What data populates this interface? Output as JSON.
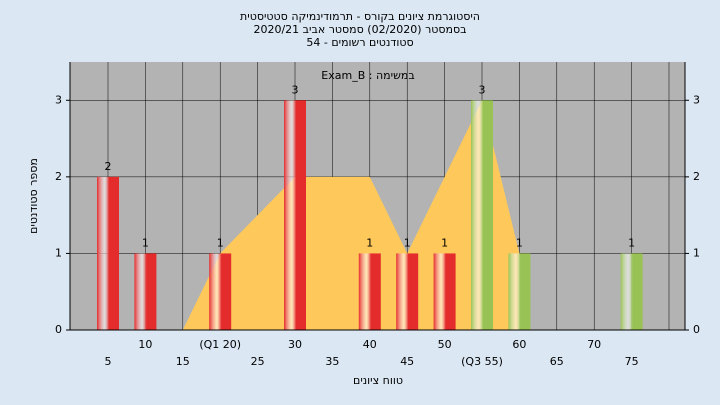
{
  "chart_data": {
    "type": "bar",
    "title_lines": [
      "היסטוגרמת ציונים בקורס - תרמודינמיקה סטטיסטית",
      "בסמסטר  (02/2020)  סמסטר אביב 2020/21",
      "סטודנטים רשומים - 54"
    ],
    "annotation": "Exam_B : במשימה",
    "x_label": "טווח ציונים",
    "y_label": "מספר סטודנטים",
    "categories": [
      "5",
      "10",
      "15",
      "(Q1 20)",
      "25",
      "30",
      "35",
      "40",
      "45",
      "50",
      "(Q3 55)",
      "60",
      "65",
      "70",
      "75"
    ],
    "values": [
      2,
      1,
      0,
      1,
      0,
      3,
      0,
      1,
      1,
      1,
      3,
      1,
      0,
      0,
      1
    ],
    "bar_colors": [
      "#e52c2c",
      "#e52c2c",
      "#e52c2c",
      "#e52c2c",
      "#e52c2c",
      "#e52c2c",
      "#e52c2c",
      "#e52c2c",
      "#e52c2c",
      "#e52c2c",
      "#98c354",
      "#98c354",
      "#98c354",
      "#98c354",
      "#98c354"
    ],
    "area_values": [
      null,
      null,
      0,
      1,
      1.5,
      2,
      2,
      2,
      1,
      2,
      3,
      1,
      null,
      null,
      null
    ],
    "area_color": "#ffc85a",
    "ylim": [
      0,
      3.5
    ],
    "yticks": [
      0,
      1,
      2,
      3
    ],
    "y2lim": [
      0,
      3.5
    ],
    "y2ticks": [
      0,
      1,
      2,
      3
    ],
    "grid": true
  }
}
